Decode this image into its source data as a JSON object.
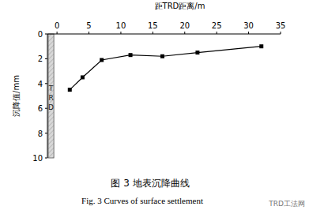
{
  "chart_data": {
    "type": "line",
    "title": "图 3 地表沉降曲线",
    "subtitle": "Fig. 3 Curves of surface settlement",
    "x_label": "距TRD距离/m",
    "y_label": "沉降值/mm",
    "annotations": [
      "TRD",
      "TRD工法网"
    ],
    "x": [
      2,
      4,
      7,
      11.5,
      16.5,
      22,
      32
    ],
    "values": [
      4.5,
      3.5,
      2.1,
      1.7,
      1.8,
      1.5,
      1.0
    ],
    "color": "#000000",
    "marker": "square",
    "xlim": [
      -1.5,
      35
    ],
    "xticks": [
      0,
      5,
      10,
      15,
      20,
      25,
      30,
      35
    ],
    "ylim": [
      0,
      10
    ],
    "yticks": [
      0,
      2,
      4,
      6,
      8,
      10
    ],
    "grid": false
  }
}
